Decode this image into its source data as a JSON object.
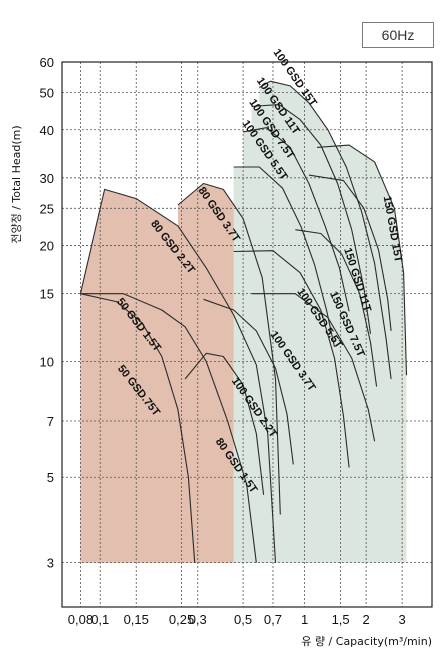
{
  "badge": "60Hz",
  "chart_data": {
    "type": "area",
    "title": "",
    "xlabel": "유 량 / Capacity(m³/min)",
    "ylabel": "전양정 / Total Head(m)",
    "x_scale": "log",
    "y_scale": "log",
    "xlim": [
      0.065,
      4.2
    ],
    "ylim": [
      2.3,
      60
    ],
    "x_ticks": [
      0.08,
      0.1,
      0.15,
      0.25,
      0.3,
      0.5,
      0.7,
      1,
      1.5,
      2,
      3
    ],
    "x_tick_labels": [
      "0,08",
      "0,1",
      "0,15",
      "0,25",
      "0,3",
      "0,5",
      "0,7",
      "1",
      "1,5",
      "2",
      "3"
    ],
    "y_ticks": [
      3,
      5,
      7,
      10,
      15,
      20,
      25,
      30,
      40,
      50,
      60
    ],
    "y_tick_labels": [
      "3",
      "5",
      "7",
      "10",
      "15",
      "20",
      "25",
      "30",
      "40",
      "50",
      "60"
    ],
    "grid": true,
    "series": [
      {
        "name": "50 GSD.75T",
        "color": "#e2bfae",
        "label_at": [
          0.15,
          8.3
        ],
        "label_angle": 52,
        "curve": [
          [
            0.08,
            15
          ],
          [
            0.12,
            14.3
          ],
          [
            0.16,
            12.6
          ],
          [
            0.2,
            10.3
          ],
          [
            0.24,
            7.5
          ],
          [
            0.27,
            5
          ],
          [
            0.29,
            3
          ]
        ]
      },
      {
        "name": "50 GSD 1.5T",
        "color": "#e2bfae",
        "label_at": [
          0.15,
          12.3
        ],
        "label_angle": 52,
        "curve": [
          [
            0.08,
            15
          ],
          [
            0.13,
            15
          ],
          [
            0.2,
            13.6
          ],
          [
            0.26,
            12.3
          ],
          [
            0.33,
            10
          ],
          [
            0.42,
            7
          ],
          [
            0.52,
            4.8
          ],
          [
            0.58,
            3
          ]
        ]
      },
      {
        "name": "80 GSD 2.2T",
        "color": "#e2bfae",
        "label_at": [
          0.22,
          19.6
        ],
        "label_angle": 52,
        "curve": [
          [
            0.08,
            15
          ],
          [
            0.105,
            28
          ],
          [
            0.15,
            26.5
          ],
          [
            0.24,
            22.5
          ],
          [
            0.33,
            17.5
          ],
          [
            0.45,
            13.2
          ],
          [
            0.58,
            9.8
          ],
          [
            0.66,
            6.5
          ],
          [
            0.72,
            3
          ]
        ]
      },
      {
        "name": "80 GSD 3.7T",
        "color": "#e2bfae",
        "label_at": [
          0.37,
          23.8
        ],
        "label_angle": 55,
        "curve": [
          [
            0.24,
            25.5
          ],
          [
            0.32,
            29
          ],
          [
            0.4,
            28
          ],
          [
            0.5,
            23.5
          ],
          [
            0.62,
            16.5
          ],
          [
            0.72,
            9
          ],
          [
            0.76,
            4
          ]
        ]
      },
      {
        "name": "80 GSD 1.5T",
        "color": "#e2bfae",
        "label_at": [
          0.45,
          5.3
        ],
        "label_angle": 55,
        "curve": [
          [
            0.26,
            9
          ],
          [
            0.33,
            10.5
          ],
          [
            0.4,
            10.3
          ],
          [
            0.5,
            8.7
          ],
          [
            0.58,
            6.5
          ],
          [
            0.63,
            4.5
          ]
        ]
      },
      {
        "name": "100 GSD 2.2T",
        "color": "#e2bfae",
        "label_at": [
          0.55,
          7.5
        ],
        "label_angle": 55,
        "curve": [
          [
            0.32,
            14.5
          ],
          [
            0.45,
            13.6
          ],
          [
            0.58,
            12
          ],
          [
            0.72,
            9.6
          ],
          [
            0.82,
            7.3
          ],
          [
            0.88,
            5.4
          ]
        ]
      },
      {
        "name": "100 GSD 3.7T",
        "color": "#dbe6de",
        "label_at": [
          0.85,
          9.9
        ],
        "label_angle": 55,
        "curve": [
          [
            0.45,
            19.3
          ],
          [
            0.7,
            19.4
          ],
          [
            0.95,
            17
          ],
          [
            1.2,
            13.6
          ],
          [
            1.4,
            10.2
          ],
          [
            1.55,
            7.2
          ],
          [
            1.65,
            5.3
          ]
        ]
      },
      {
        "name": "100 GSD 5.5T",
        "color": "#dbe6de",
        "label_at": [
          0.62,
          35
        ],
        "label_angle": 55,
        "curve": [
          [
            0.45,
            32
          ],
          [
            0.6,
            32
          ],
          [
            0.78,
            28.2
          ],
          [
            0.96,
            22.4
          ],
          [
            1.12,
            17.8
          ],
          [
            1.28,
            13.6
          ],
          [
            1.4,
            10.9
          ]
        ]
      },
      {
        "name": "100 GSD 7.5T",
        "color": "#dbe6de",
        "label_at": [
          0.67,
          39.7
        ],
        "label_angle": 55,
        "curve": [
          [
            0.5,
            39.5
          ],
          [
            0.65,
            40.5
          ],
          [
            0.85,
            36
          ],
          [
            1.05,
            29
          ],
          [
            1.26,
            22.5
          ],
          [
            1.48,
            17.5
          ],
          [
            1.65,
            13.5
          ]
        ]
      },
      {
        "name": "100 GSD 11T",
        "color": "#dbe6de",
        "label_at": [
          0.72,
          45.6
        ],
        "label_angle": 55,
        "curve": [
          [
            0.55,
            46
          ],
          [
            0.75,
            46.5
          ],
          [
            0.95,
            42.5
          ],
          [
            1.2,
            36.5
          ],
          [
            1.45,
            29
          ],
          [
            1.7,
            22
          ],
          [
            1.95,
            15.5
          ],
          [
            2.1,
            11.8
          ]
        ]
      },
      {
        "name": "100 GSD 15T",
        "color": "#dbe6de",
        "label_at": [
          0.87,
          54
        ],
        "label_angle": 55,
        "curve": [
          [
            0.6,
            51.5
          ],
          [
            0.68,
            53.5
          ],
          [
            0.85,
            52
          ],
          [
            1.05,
            47
          ],
          [
            1.3,
            40
          ],
          [
            1.6,
            32
          ],
          [
            1.9,
            24.5
          ],
          [
            2.2,
            18
          ],
          [
            2.5,
            11.5
          ],
          [
            2.65,
            9
          ]
        ]
      },
      {
        "name": "100 GSD 5.5T",
        "color": "#dbe6de",
        "label_at": [
          1.15,
          12.8
        ],
        "label_angle": 55,
        "curve": [
          [
            0.55,
            15
          ],
          [
            0.9,
            15
          ],
          [
            1.3,
            13
          ],
          [
            1.7,
            10.2
          ],
          [
            2.05,
            7.5
          ],
          [
            2.2,
            6.2
          ]
        ]
      },
      {
        "name": "150 GSD 7.5T",
        "color": "#dbe6de",
        "label_at": [
          1.56,
          12.4
        ],
        "label_angle": 66,
        "curve": [
          [
            0.9,
            22
          ],
          [
            1.2,
            21.5
          ],
          [
            1.52,
            19
          ],
          [
            1.86,
            15
          ],
          [
            2.1,
            11.2
          ],
          [
            2.25,
            8.6
          ]
        ]
      },
      {
        "name": "150 GSD 11T",
        "color": "#dbe6de",
        "label_at": [
          1.75,
          16.2
        ],
        "label_angle": 72,
        "curve": [
          [
            1.05,
            30.5
          ],
          [
            1.55,
            29.5
          ],
          [
            1.95,
            25
          ],
          [
            2.3,
            19.5
          ],
          [
            2.55,
            14.5
          ],
          [
            2.65,
            12
          ]
        ]
      },
      {
        "name": "150 GSD 15T",
        "color": "#dbe6de",
        "label_at": [
          2.6,
          22
        ],
        "label_angle": 80,
        "curve": [
          [
            1.15,
            36
          ],
          [
            1.65,
            36.5
          ],
          [
            2.2,
            33
          ],
          [
            2.75,
            25
          ],
          [
            3.05,
            17
          ],
          [
            3.15,
            9.2
          ]
        ]
      }
    ]
  }
}
